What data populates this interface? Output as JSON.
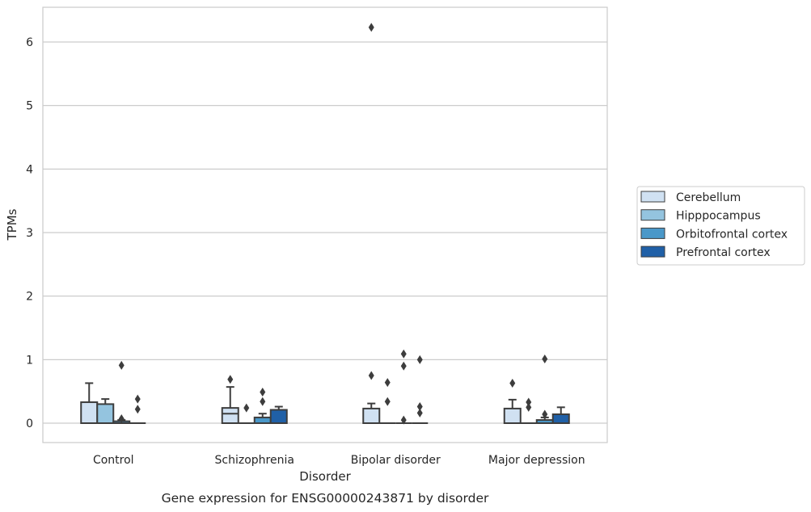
{
  "chart_data": {
    "type": "box",
    "title": "",
    "caption": "Gene expression for ENSG00000243871 by disorder",
    "xlabel": "Disorder",
    "ylabel": "TPMs",
    "ylim": [
      -0.3,
      6.55
    ],
    "yticks": [
      0,
      1,
      2,
      3,
      4,
      5,
      6
    ],
    "grid": "horizontal",
    "legend_position": "right",
    "categories": [
      "Control",
      "Schizophrenia",
      "Bipolar disorder",
      "Major depression"
    ],
    "series": [
      {
        "name": "Cerebellum",
        "color": "#d0e1f2",
        "boxes": [
          {
            "q1": 0,
            "median": 0,
            "q3": 0.33,
            "whisker_low": 0,
            "whisker_high": 0.63,
            "outliers": []
          },
          {
            "q1": 0,
            "median": 0.15,
            "q3": 0.24,
            "whisker_low": 0,
            "whisker_high": 0.57,
            "outliers": [
              0.69
            ]
          },
          {
            "q1": 0,
            "median": 0,
            "q3": 0.23,
            "whisker_low": 0,
            "whisker_high": 0.31,
            "outliers": [
              0.75,
              6.23
            ]
          },
          {
            "q1": 0,
            "median": 0,
            "q3": 0.23,
            "whisker_low": 0,
            "whisker_high": 0.37,
            "outliers": [
              0.63
            ]
          }
        ]
      },
      {
        "name": "Hipppocampus",
        "color": "#94c4df",
        "boxes": [
          {
            "q1": 0,
            "median": 0,
            "q3": 0.3,
            "whisker_low": 0,
            "whisker_high": 0.38,
            "outliers": []
          },
          {
            "q1": 0,
            "median": 0,
            "q3": 0,
            "whisker_low": 0,
            "whisker_high": 0,
            "outliers": [
              0.24
            ]
          },
          {
            "q1": 0,
            "median": 0,
            "q3": 0,
            "whisker_low": 0,
            "whisker_high": 0,
            "outliers": [
              0.34,
              0.64
            ]
          },
          {
            "q1": 0,
            "median": 0,
            "q3": 0,
            "whisker_low": 0,
            "whisker_high": 0,
            "outliers": [
              0.25,
              0.33
            ]
          }
        ]
      },
      {
        "name": "Orbitofrontal cortex",
        "color": "#4a98c9",
        "boxes": [
          {
            "q1": 0,
            "median": 0,
            "q3": 0.03,
            "whisker_low": 0,
            "whisker_high": 0.05,
            "outliers": [
              0.07,
              0.91
            ]
          },
          {
            "q1": 0,
            "median": 0,
            "q3": 0.09,
            "whisker_low": 0,
            "whisker_high": 0.15,
            "outliers": [
              0.34,
              0.49
            ]
          },
          {
            "q1": 0,
            "median": 0,
            "q3": 0,
            "whisker_low": 0,
            "whisker_high": 0,
            "outliers": [
              0.05,
              0.9,
              1.09
            ]
          },
          {
            "q1": 0,
            "median": 0,
            "q3": 0.05,
            "whisker_low": 0,
            "whisker_high": 0.09,
            "outliers": [
              0.14,
              1.01
            ]
          }
        ]
      },
      {
        "name": "Prefrontal cortex",
        "color": "#2060a7",
        "boxes": [
          {
            "q1": 0,
            "median": 0,
            "q3": 0,
            "whisker_low": 0,
            "whisker_high": 0,
            "outliers": [
              0.22,
              0.38
            ]
          },
          {
            "q1": 0,
            "median": 0,
            "q3": 0.21,
            "whisker_low": 0,
            "whisker_high": 0.26,
            "outliers": []
          },
          {
            "q1": 0,
            "median": 0,
            "q3": 0,
            "whisker_low": 0,
            "whisker_high": 0,
            "outliers": [
              0.16,
              0.26,
              1.0
            ]
          },
          {
            "q1": 0,
            "median": 0,
            "q3": 0.14,
            "whisker_low": 0,
            "whisker_high": 0.25,
            "outliers": []
          }
        ]
      }
    ]
  }
}
